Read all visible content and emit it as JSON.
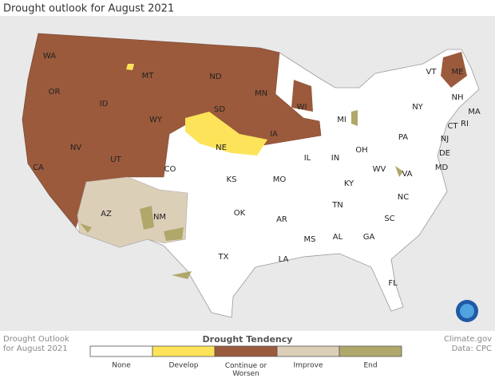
{
  "title": "Drought outlook for August 2021",
  "state_labels": [
    "WA",
    "OR",
    "CA",
    "ID",
    "NV",
    "MT",
    "WY",
    "UT",
    "AZ",
    "CO",
    "NM",
    "ND",
    "SD",
    "NE",
    "KS",
    "OK",
    "TX",
    "MN",
    "IA",
    "MO",
    "AR",
    "LA",
    "WI",
    "IL",
    "MS",
    "MI",
    "IN",
    "KY",
    "TN",
    "AL",
    "OH",
    "GA",
    "FL",
    "WV",
    "VA",
    "NC",
    "SC",
    "PA",
    "NY",
    "VT",
    "ME",
    "NH",
    "MA",
    "CT",
    "RI",
    "NJ",
    "DE",
    "MD"
  ],
  "legend": {
    "title": "Drought Tendency",
    "items": [
      {
        "label": "None",
        "color": "#ffffff"
      },
      {
        "label": "Develop",
        "color": "#fde35a"
      },
      {
        "label": "Continue or Worsen",
        "color": "#9b5a3c"
      },
      {
        "label": "Improve",
        "color": "#dccfb8"
      },
      {
        "label": "End",
        "color": "#b0a86a"
      }
    ]
  },
  "footer_left": [
    "Drought Outlook",
    "for August 2021"
  ],
  "footer_right": [
    "Climate.gov",
    "Data: CPC"
  ]
}
